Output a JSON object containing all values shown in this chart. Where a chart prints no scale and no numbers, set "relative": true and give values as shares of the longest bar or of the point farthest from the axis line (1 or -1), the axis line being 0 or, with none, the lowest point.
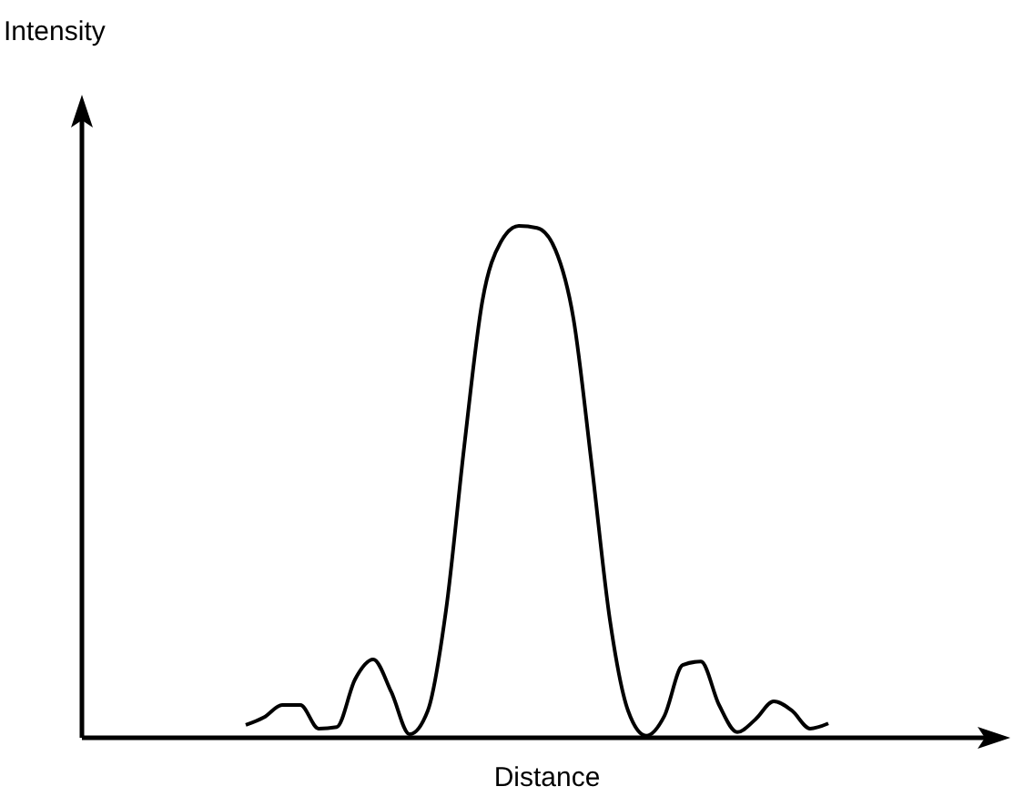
{
  "chart_data": {
    "type": "line",
    "relative": true,
    "xlabel": "Distance",
    "annotations": [
      "Intensity"
    ],
    "categories": [
      null,
      null,
      null,
      null,
      null,
      null,
      null,
      null,
      null,
      null,
      null,
      null,
      null,
      null,
      null,
      null,
      null,
      null,
      null,
      null,
      null,
      null,
      null,
      null,
      null,
      null,
      null,
      null,
      null,
      null,
      null,
      null,
      null,
      null,
      null,
      null,
      null,
      null,
      null,
      null,
      null,
      null,
      null,
      null,
      null,
      null,
      null,
      null,
      null,
      null,
      null,
      null
    ],
    "series": [
      {
        "color": "#000000",
        "values": [
          null,
          null,
          null,
          null,
          null,
          null,
          null,
          null,
          null,
          0.025,
          0.04,
          0.064,
          0.064,
          0.018,
          0.021,
          0.114,
          0.153,
          0.089,
          0.007,
          0.053,
          0.249,
          0.569,
          0.854,
          0.968,
          1,
          0.996,
          0.954,
          0.819,
          0.534,
          0.231,
          0.053,
          0.004,
          0.043,
          0.142,
          0.149,
          0.064,
          0.011,
          0.036,
          0.071,
          0.053,
          0.018,
          0.028,
          null,
          null,
          null,
          null,
          null,
          null,
          null,
          null,
          null,
          null
        ]
      }
    ],
    "grid": false,
    "tick_labels": false
  }
}
